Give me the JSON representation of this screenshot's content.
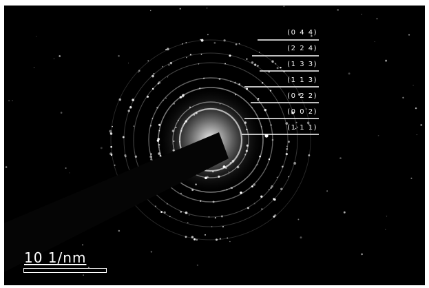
{
  "colors": {
    "background": "#000000",
    "text": "#ffffff",
    "rings": "#d8d8d8",
    "beam_stopper": "#050505"
  },
  "plane_labels": [
    {
      "key": "p044",
      "label": "(0 4 4)"
    },
    {
      "key": "p224",
      "label": "(2 2 4)"
    },
    {
      "key": "p133",
      "label": "(1 3 3)"
    },
    {
      "key": "p113",
      "label": "(1 1 3)"
    },
    {
      "key": "p022",
      "label": "(0 2 2)"
    },
    {
      "key": "p002",
      "label": "(0 0 2)"
    },
    {
      "key": "p111",
      "label": "(1 1 1)"
    }
  ],
  "scale_bar": {
    "label": "10  1/nm"
  }
}
